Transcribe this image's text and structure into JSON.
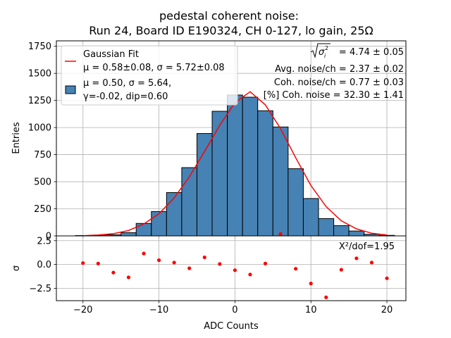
{
  "chart_data": {
    "type": "bar",
    "title_line1": "pedestal coherent noise:",
    "title_line2": "Run 24, Board ID E190324, CH 0-127, lo gain, 25Ω",
    "xlabel": "ADC Counts",
    "ylabel_top": "Entries",
    "ylabel_bottom": "σ",
    "xlim": [
      -23.5,
      22.5
    ],
    "ylim_top": [
      0,
      1800
    ],
    "ylim_bottom": [
      -3.8,
      3.0
    ],
    "x_ticks": [
      -20,
      -10,
      0,
      10,
      20
    ],
    "y_ticks_top": [
      0,
      250,
      500,
      750,
      1000,
      1250,
      1500,
      1750
    ],
    "y_ticks_bottom": [
      -2.5,
      0.0,
      2.5
    ],
    "x_tick_labels": [
      "−20",
      "−10",
      "0",
      "10",
      "20"
    ],
    "y_tick_labels_top": [
      "0",
      "250",
      "500",
      "750",
      "1000",
      "1250",
      "1500",
      "1750"
    ],
    "y_tick_labels_bottom": [
      "−2.5",
      "0.0",
      "2.5"
    ],
    "grid": true,
    "hist_color": "#4682b4",
    "fit_color": "#ff0000",
    "residual_color": "#ff0000",
    "bin_edges": [
      -21,
      -19,
      -17,
      -15,
      -13,
      -11,
      -9,
      -7,
      -5,
      -3,
      -1,
      1,
      3,
      5,
      7,
      9,
      11,
      13,
      15,
      17,
      19,
      21
    ],
    "counts": [
      3,
      5,
      10,
      30,
      115,
      225,
      400,
      630,
      945,
      1150,
      1300,
      1280,
      1155,
      1005,
      620,
      345,
      160,
      95,
      45,
      15,
      5
    ],
    "fit_x": [
      -20,
      -18,
      -16,
      -14,
      -12,
      -10,
      -8,
      -6,
      -4,
      -2,
      0,
      2,
      4,
      6,
      8,
      10,
      12,
      14,
      16,
      18,
      20
    ],
    "fit_y": [
      2,
      8,
      20,
      50,
      110,
      205,
      350,
      545,
      780,
      1020,
      1230,
      1330,
      1210,
      990,
      720,
      465,
      270,
      140,
      65,
      25,
      8
    ],
    "residual_x": [
      -20,
      -18,
      -16,
      -14,
      -12,
      -10,
      -8,
      -6,
      -4,
      -2,
      0,
      2,
      4,
      6,
      8,
      10,
      12,
      14,
      16,
      18,
      20
    ],
    "residual_y": [
      0.15,
      0.1,
      -0.85,
      -1.35,
      1.15,
      0.45,
      0.2,
      -0.4,
      0.75,
      0.05,
      -0.6,
      -1.05,
      0.1,
      3.2,
      -0.45,
      -2.0,
      -3.45,
      -0.55,
      0.65,
      0.2,
      -1.45
    ],
    "legend": {
      "placement": "top-left",
      "fit_line1": "Gaussian Fit",
      "fit_line2": "μ = 0.58±0.08, σ = 5.72±0.08",
      "hist_line1": "μ = 0.50, σ = 5.64,",
      "hist_line2": "γ=-0.02, dip=0.60"
    },
    "annotations": {
      "sigma_line_value": "= 4.74 ± 0.05",
      "avg_noise": "Avg. noise/ch = 2.37 ± 0.02",
      "coh_noise": "Coh. noise/ch = 0.77 ± 0.03",
      "coh_pct": "[%] Coh. noise = 32.30  ± 1.41",
      "chi2": "Χ²/dof=1.95"
    }
  }
}
